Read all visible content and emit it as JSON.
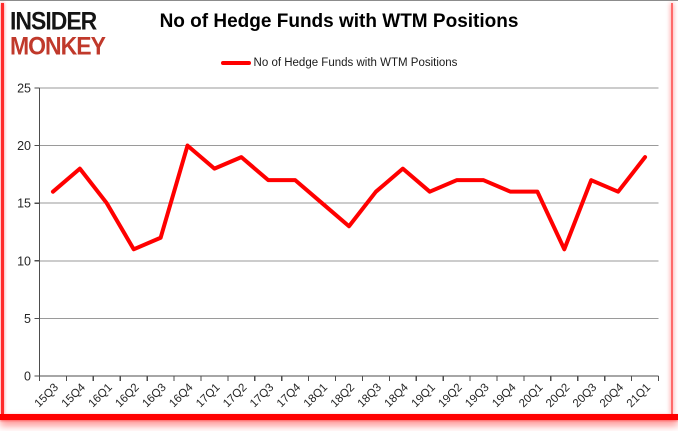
{
  "header": {
    "logo_line1": "INSIDER",
    "logo_line2": "MONKEY",
    "title": "No of Hedge Funds with WTM Positions"
  },
  "legend": {
    "label": "No of Hedge Funds with WTM Positions"
  },
  "colors": {
    "line": "#ff0000",
    "logo_black": "#141414",
    "logo_red": "#c0392b",
    "grid": "#9a9a9a",
    "axis": "#4d4d4d",
    "label_text": "#262626",
    "frame_red": "#ff0000",
    "frame_gray": "#8c8c8c"
  },
  "chart_data": {
    "type": "line",
    "title": "No of Hedge Funds with WTM Positions",
    "xlabel": "",
    "ylabel": "",
    "ylim": [
      0,
      25
    ],
    "yticks": [
      0,
      5,
      10,
      15,
      20,
      25
    ],
    "grid": true,
    "legend_position": "top",
    "categories": [
      "15Q3",
      "15Q4",
      "16Q1",
      "16Q2",
      "16Q3",
      "16Q4",
      "17Q1",
      "17Q2",
      "17Q3",
      "17Q4",
      "18Q1",
      "18Q2",
      "18Q3",
      "18Q4",
      "19Q1",
      "19Q2",
      "19Q3",
      "19Q4",
      "20Q1",
      "20Q2",
      "20Q3",
      "20Q4",
      "21Q1"
    ],
    "series": [
      {
        "name": "No of Hedge Funds with WTM Positions",
        "values": [
          16,
          18,
          15,
          11,
          12,
          20,
          18,
          19,
          17,
          17,
          15,
          13,
          16,
          18,
          16,
          17,
          17,
          16,
          16,
          11,
          17,
          16,
          19
        ]
      }
    ]
  }
}
